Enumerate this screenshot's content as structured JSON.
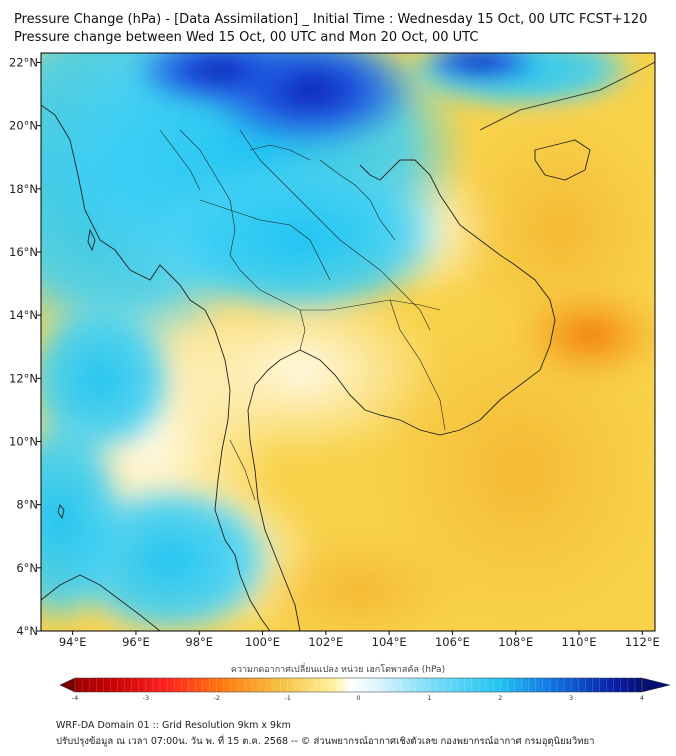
{
  "header": {
    "title_line1": "Pressure Change (hPa) - [Data Assimilation] _ Initial Time : Wednesday 15 Oct, 00 UTC FCST+120",
    "title_line2": "Pressure change between Wed 15 Oct, 00 UTC and Mon 20 Oct, 00 UTC"
  },
  "map": {
    "lon_ticks": [
      "94°E",
      "96°E",
      "98°E",
      "100°E",
      "102°E",
      "104°E",
      "106°E",
      "108°E",
      "110°E",
      "112°E"
    ],
    "lat_ticks": [
      "22°N",
      "20°N",
      "18°N",
      "16°N",
      "14°N",
      "12°N",
      "10°N",
      "8°N",
      "6°N",
      "4°N"
    ],
    "lon_range": [
      93,
      112.4
    ],
    "lat_range": [
      4,
      22.3
    ],
    "colors": {
      "strong_fall": "#8b0000",
      "fall": "#ff8c1a",
      "slight_fall": "#f5c242",
      "neutral": "#ffffff",
      "rise": "#26c6f2",
      "strong_rise": "#0a1fa8"
    }
  },
  "colorbar": {
    "title": "ความกดอากาศเปลี่ยนแปลง หน่วย เฮกโตพาสคัล (hPa)",
    "ticks": [
      "-4",
      "-3",
      "-2",
      "-1",
      "0",
      "1",
      "2",
      "3",
      "4"
    ],
    "range": [
      -4,
      4
    ]
  },
  "footer": {
    "line1": "WRF-DA Domain 01 :: Grid Resolution 9km x 9km",
    "line2": "ปรับปรุงข้อมูล ณ เวลา 07:00น. วัน พ. ที่ 15 ต.ค. 2568 -- © ส่วนพยากรณ์อากาศเชิงตัวเลข กองพยากรณ์อากาศ กรมอุตุนิยมวิทยา"
  }
}
